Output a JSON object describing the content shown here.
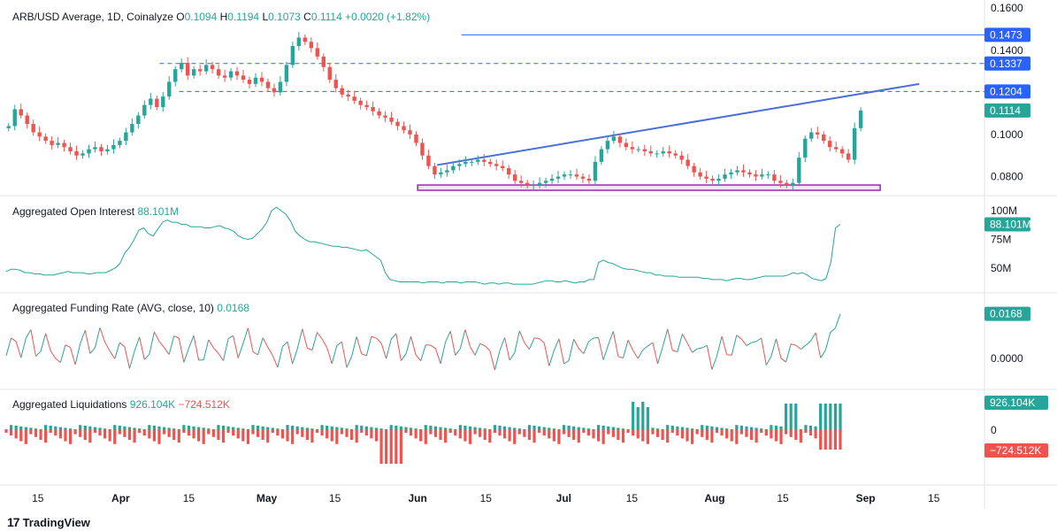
{
  "brand": {
    "logo": "17",
    "name": "TradingView"
  },
  "chart_data": [
    {
      "type": "candlestick",
      "title": "ARB/USD Average, 1D, Coinalyze",
      "ohlc": {
        "o_label": "O",
        "o": "0.1094",
        "h_label": "H",
        "h": "0.1194",
        "l_label": "L",
        "l": "0.1073",
        "c_label": "C",
        "c": "0.1114",
        "change": "+0.0020 (+1.82%)"
      },
      "y_ticks": [
        "0.1600",
        "0.1400",
        "0.1000",
        "0.0800"
      ],
      "y_tick_values": [
        0.16,
        0.14,
        0.1,
        0.08
      ],
      "ylim": [
        0.0735,
        0.1605
      ],
      "price_labels": [
        {
          "text": "0.1473",
          "value": 0.1473,
          "color": "#2962ff"
        },
        {
          "text": "0.1337",
          "value": 0.1337,
          "color": "#2962ff"
        },
        {
          "text": "0.1204",
          "value": 0.1204,
          "color": "#2962ff"
        },
        {
          "text": "0.1114",
          "value": 0.1114,
          "color": "#26a69a"
        }
      ],
      "horizontal_lines": [
        {
          "value": 0.1473,
          "style": "solid",
          "from_day": 93
        },
        {
          "value": 0.1337,
          "style": "dashed",
          "from_day": 31
        },
        {
          "value": 0.1204,
          "style": "dashed",
          "from_day": 35
        }
      ],
      "trendline": {
        "x": [
          "Jun 5",
          "Sep 12"
        ],
        "y": [
          0.0855,
          0.124
        ]
      },
      "support_zone": {
        "x": [
          "Jun 1",
          "Sep 4"
        ],
        "y": [
          0.0735,
          0.076
        ]
      },
      "x_ticks": [
        "15",
        "Apr",
        "15",
        "May",
        "15",
        "Jun",
        "15",
        "Jul",
        "15",
        "Aug",
        "15",
        "Sep",
        "15"
      ],
      "x_tick_dates": [
        "Mar 15",
        "Apr 1",
        "Apr 15",
        "May 1",
        "May 15",
        "Jun 1",
        "Jun 15",
        "Jul 1",
        "Jul 15",
        "Aug 1",
        "Aug 15",
        "Sep 1",
        "Sep 15"
      ],
      "closes": [
        0.104,
        0.112,
        0.109,
        0.105,
        0.101,
        0.099,
        0.097,
        0.095,
        0.096,
        0.094,
        0.092,
        0.09,
        0.091,
        0.093,
        0.094,
        0.092,
        0.093,
        0.095,
        0.097,
        0.101,
        0.105,
        0.109,
        0.114,
        0.117,
        0.113,
        0.118,
        0.125,
        0.131,
        0.134,
        0.128,
        0.131,
        0.13,
        0.133,
        0.131,
        0.128,
        0.127,
        0.13,
        0.128,
        0.126,
        0.124,
        0.127,
        0.125,
        0.122,
        0.12,
        0.125,
        0.133,
        0.142,
        0.146,
        0.144,
        0.141,
        0.137,
        0.132,
        0.126,
        0.122,
        0.119,
        0.118,
        0.116,
        0.114,
        0.113,
        0.111,
        0.109,
        0.108,
        0.106,
        0.104,
        0.102,
        0.1,
        0.096,
        0.09,
        0.085,
        0.081,
        0.082,
        0.083,
        0.085,
        0.086,
        0.087,
        0.087,
        0.088,
        0.087,
        0.086,
        0.085,
        0.084,
        0.081,
        0.078,
        0.077,
        0.076,
        0.076,
        0.077,
        0.078,
        0.079,
        0.08,
        0.081,
        0.081,
        0.08,
        0.079,
        0.078,
        0.087,
        0.093,
        0.097,
        0.099,
        0.096,
        0.094,
        0.093,
        0.093,
        0.092,
        0.091,
        0.091,
        0.092,
        0.091,
        0.09,
        0.088,
        0.085,
        0.082,
        0.08,
        0.079,
        0.078,
        0.079,
        0.081,
        0.082,
        0.083,
        0.082,
        0.081,
        0.08,
        0.081,
        0.081,
        0.078,
        0.077,
        0.076,
        0.077,
        0.089,
        0.098,
        0.101,
        0.1,
        0.097,
        0.094,
        0.093,
        0.091,
        0.088,
        0.103,
        0.1114
      ],
      "indicator": {
        "name": "",
        "value": ""
      }
    },
    {
      "type": "line",
      "title": "Aggregated Open Interest",
      "value": "88.101M",
      "y_ticks": [
        "100M",
        "75M",
        "50M"
      ],
      "y_tick_values": [
        100,
        75,
        50
      ],
      "ylim": [
        33,
        107
      ],
      "badge": {
        "text": "88.101M",
        "value": 88.101
      },
      "values": [
        47,
        49,
        49,
        48,
        46,
        46,
        45,
        45,
        44,
        44,
        44,
        45,
        46,
        47,
        46,
        46,
        46,
        45,
        45,
        46,
        46,
        46,
        48,
        50,
        54,
        63,
        68,
        75,
        83,
        85,
        80,
        78,
        84,
        90,
        92,
        90,
        90,
        88,
        88,
        86,
        86,
        86,
        85,
        85,
        86,
        87,
        85,
        84,
        82,
        78,
        76,
        75,
        76,
        80,
        84,
        90,
        100,
        103,
        100,
        97,
        91,
        82,
        78,
        75,
        73,
        73,
        72,
        71,
        70,
        69,
        69,
        68,
        68,
        67,
        66,
        65,
        66,
        63,
        60,
        57,
        46,
        40,
        39,
        38,
        38,
        38,
        38,
        38,
        37,
        38,
        38,
        38,
        37,
        38,
        38,
        38,
        37,
        38,
        38,
        38,
        37,
        36,
        37,
        37,
        36,
        37,
        37,
        36,
        36,
        36,
        36,
        36,
        37,
        38,
        39,
        39,
        38,
        38,
        39,
        38,
        37,
        38,
        38,
        40,
        40,
        55,
        57,
        55,
        54,
        52,
        50,
        49,
        49,
        48,
        47,
        46,
        46,
        44,
        44,
        43,
        43,
        43,
        42,
        42,
        42,
        42,
        42,
        41,
        41,
        40,
        40,
        40,
        39,
        40,
        41,
        41,
        40,
        40,
        41,
        42,
        43,
        43,
        43,
        43,
        43,
        44,
        46,
        45,
        46,
        44,
        41,
        40,
        39,
        41,
        55,
        85,
        88.101
      ]
    },
    {
      "type": "line",
      "title": "Aggregated Funding Rate (AVG, close, 10)",
      "value": "0.0168",
      "y_ticks": [
        "0.0000"
      ],
      "y_tick_values": [
        0
      ],
      "ylim": [
        -0.009,
        0.0217
      ],
      "badge": {
        "text": "0.0168",
        "value": 0.0168
      }
    },
    {
      "type": "bar",
      "title": "Aggregated Liquidations",
      "value_long": "926.104K",
      "value_short": "−724.512K",
      "y_ticks": [
        "0"
      ],
      "y_tick_values": [
        0
      ],
      "badges": [
        {
          "text": "926.104K",
          "color": "#26a69a"
        },
        {
          "text": "−724.512K",
          "color": "#ef5350"
        }
      ]
    }
  ]
}
